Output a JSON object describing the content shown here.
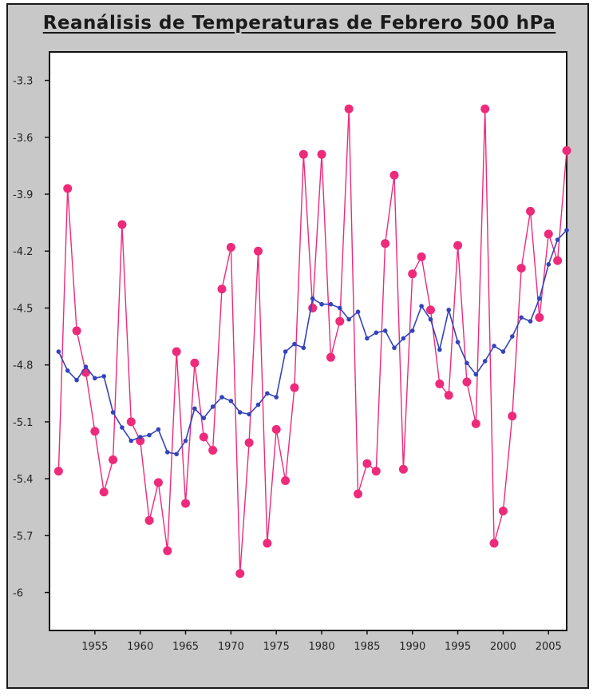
{
  "chart_data": {
    "type": "line",
    "title": "Reanálisis de Temperaturas de Febrero 500 hPa",
    "xlabel": "",
    "ylabel": "",
    "xlim": [
      1950,
      2007
    ],
    "ylim": [
      -6.2,
      -3.15
    ],
    "y_ticks": [
      -3.3,
      -3.6,
      -3.9,
      -4.2,
      -4.5,
      -4.8,
      -5.1,
      -5.4,
      -5.7,
      -6
    ],
    "y_tick_labels": [
      "-3.3",
      "-3.6",
      "-3.9",
      "-4.2",
      "-4.5",
      "-4.8",
      "-5.1",
      "-5.4",
      "-5.7",
      "-6"
    ],
    "x_ticks": [
      1955,
      1960,
      1965,
      1970,
      1975,
      1980,
      1985,
      1990,
      1995,
      2000,
      2005
    ],
    "x_tick_labels": [
      "1955",
      "1960",
      "1965",
      "1970",
      "1975",
      "1980",
      "1985",
      "1990",
      "1995",
      "2000",
      "2005"
    ],
    "grid": false,
    "legend": "none",
    "colors": {
      "annual": "#ee2a7b",
      "smoothed": "#3344bb",
      "frame_bg": "#c8c8c8",
      "plot_bg": "#ffffff"
    },
    "series": [
      {
        "x": [
          1951,
          1952,
          1953,
          1954,
          1955,
          1956,
          1957,
          1958,
          1959,
          1960,
          1961,
          1962,
          1963,
          1964,
          1965,
          1966,
          1967,
          1968,
          1969,
          1970,
          1971,
          1972,
          1973,
          1974,
          1975,
          1976,
          1977,
          1978,
          1979,
          1980,
          1981,
          1982,
          1983,
          1984,
          1985,
          1986,
          1987,
          1988,
          1989,
          1990,
          1991,
          1992,
          1993,
          1994,
          1995,
          1996,
          1997,
          1998,
          1999,
          2000,
          2001,
          2002,
          2003,
          2004,
          2005,
          2006,
          2007
        ],
        "values": [
          -5.36,
          -3.87,
          -4.62,
          -4.84,
          -5.15,
          -5.47,
          -5.3,
          -4.06,
          -5.1,
          -5.2,
          -5.62,
          -5.42,
          -5.78,
          -4.73,
          -5.53,
          -4.79,
          -5.18,
          -5.25,
          -4.4,
          -4.18,
          -5.9,
          -5.21,
          -4.2,
          -5.74,
          -5.14,
          -5.41,
          -4.92,
          -3.69,
          -4.5,
          -3.69,
          -4.76,
          -4.57,
          -3.45,
          -5.48,
          -5.32,
          -5.36,
          -4.16,
          -3.8,
          -5.35,
          -4.32,
          -4.23,
          -4.51,
          -4.9,
          -4.96,
          -4.17,
          -4.89,
          -5.11,
          -3.45,
          -5.74,
          -5.57,
          -5.07,
          -4.29,
          -3.99,
          -4.55,
          -4.11,
          -4.25,
          -3.67
        ]
      },
      {
        "x": [
          1951,
          1952,
          1953,
          1954,
          1955,
          1956,
          1957,
          1958,
          1959,
          1960,
          1961,
          1962,
          1963,
          1964,
          1965,
          1966,
          1967,
          1968,
          1969,
          1970,
          1971,
          1972,
          1973,
          1974,
          1975,
          1976,
          1977,
          1978,
          1979,
          1980,
          1981,
          1982,
          1983,
          1984,
          1985,
          1986,
          1987,
          1988,
          1989,
          1990,
          1991,
          1992,
          1993,
          1994,
          1995,
          1996,
          1997,
          1998,
          1999,
          2000,
          2001,
          2002,
          2003,
          2004,
          2005,
          2006,
          2007
        ],
        "values": [
          -4.73,
          -4.83,
          -4.88,
          -4.81,
          -4.87,
          -4.86,
          -5.05,
          -5.13,
          -5.2,
          -5.18,
          -5.17,
          -5.14,
          -5.26,
          -5.27,
          -5.2,
          -5.03,
          -5.08,
          -5.02,
          -4.97,
          -4.99,
          -5.05,
          -5.06,
          -5.01,
          -4.95,
          -4.97,
          -4.73,
          -4.69,
          -4.71,
          -4.45,
          -4.48,
          -4.48,
          -4.5,
          -4.56,
          -4.52,
          -4.66,
          -4.63,
          -4.62,
          -4.71,
          -4.66,
          -4.62,
          -4.49,
          -4.56,
          -4.72,
          -4.51,
          -4.68,
          -4.79,
          -4.85,
          -4.78,
          -4.7,
          -4.73,
          -4.65,
          -4.55,
          -4.57,
          -4.45,
          -4.27,
          -4.14,
          -4.09
        ]
      }
    ]
  }
}
